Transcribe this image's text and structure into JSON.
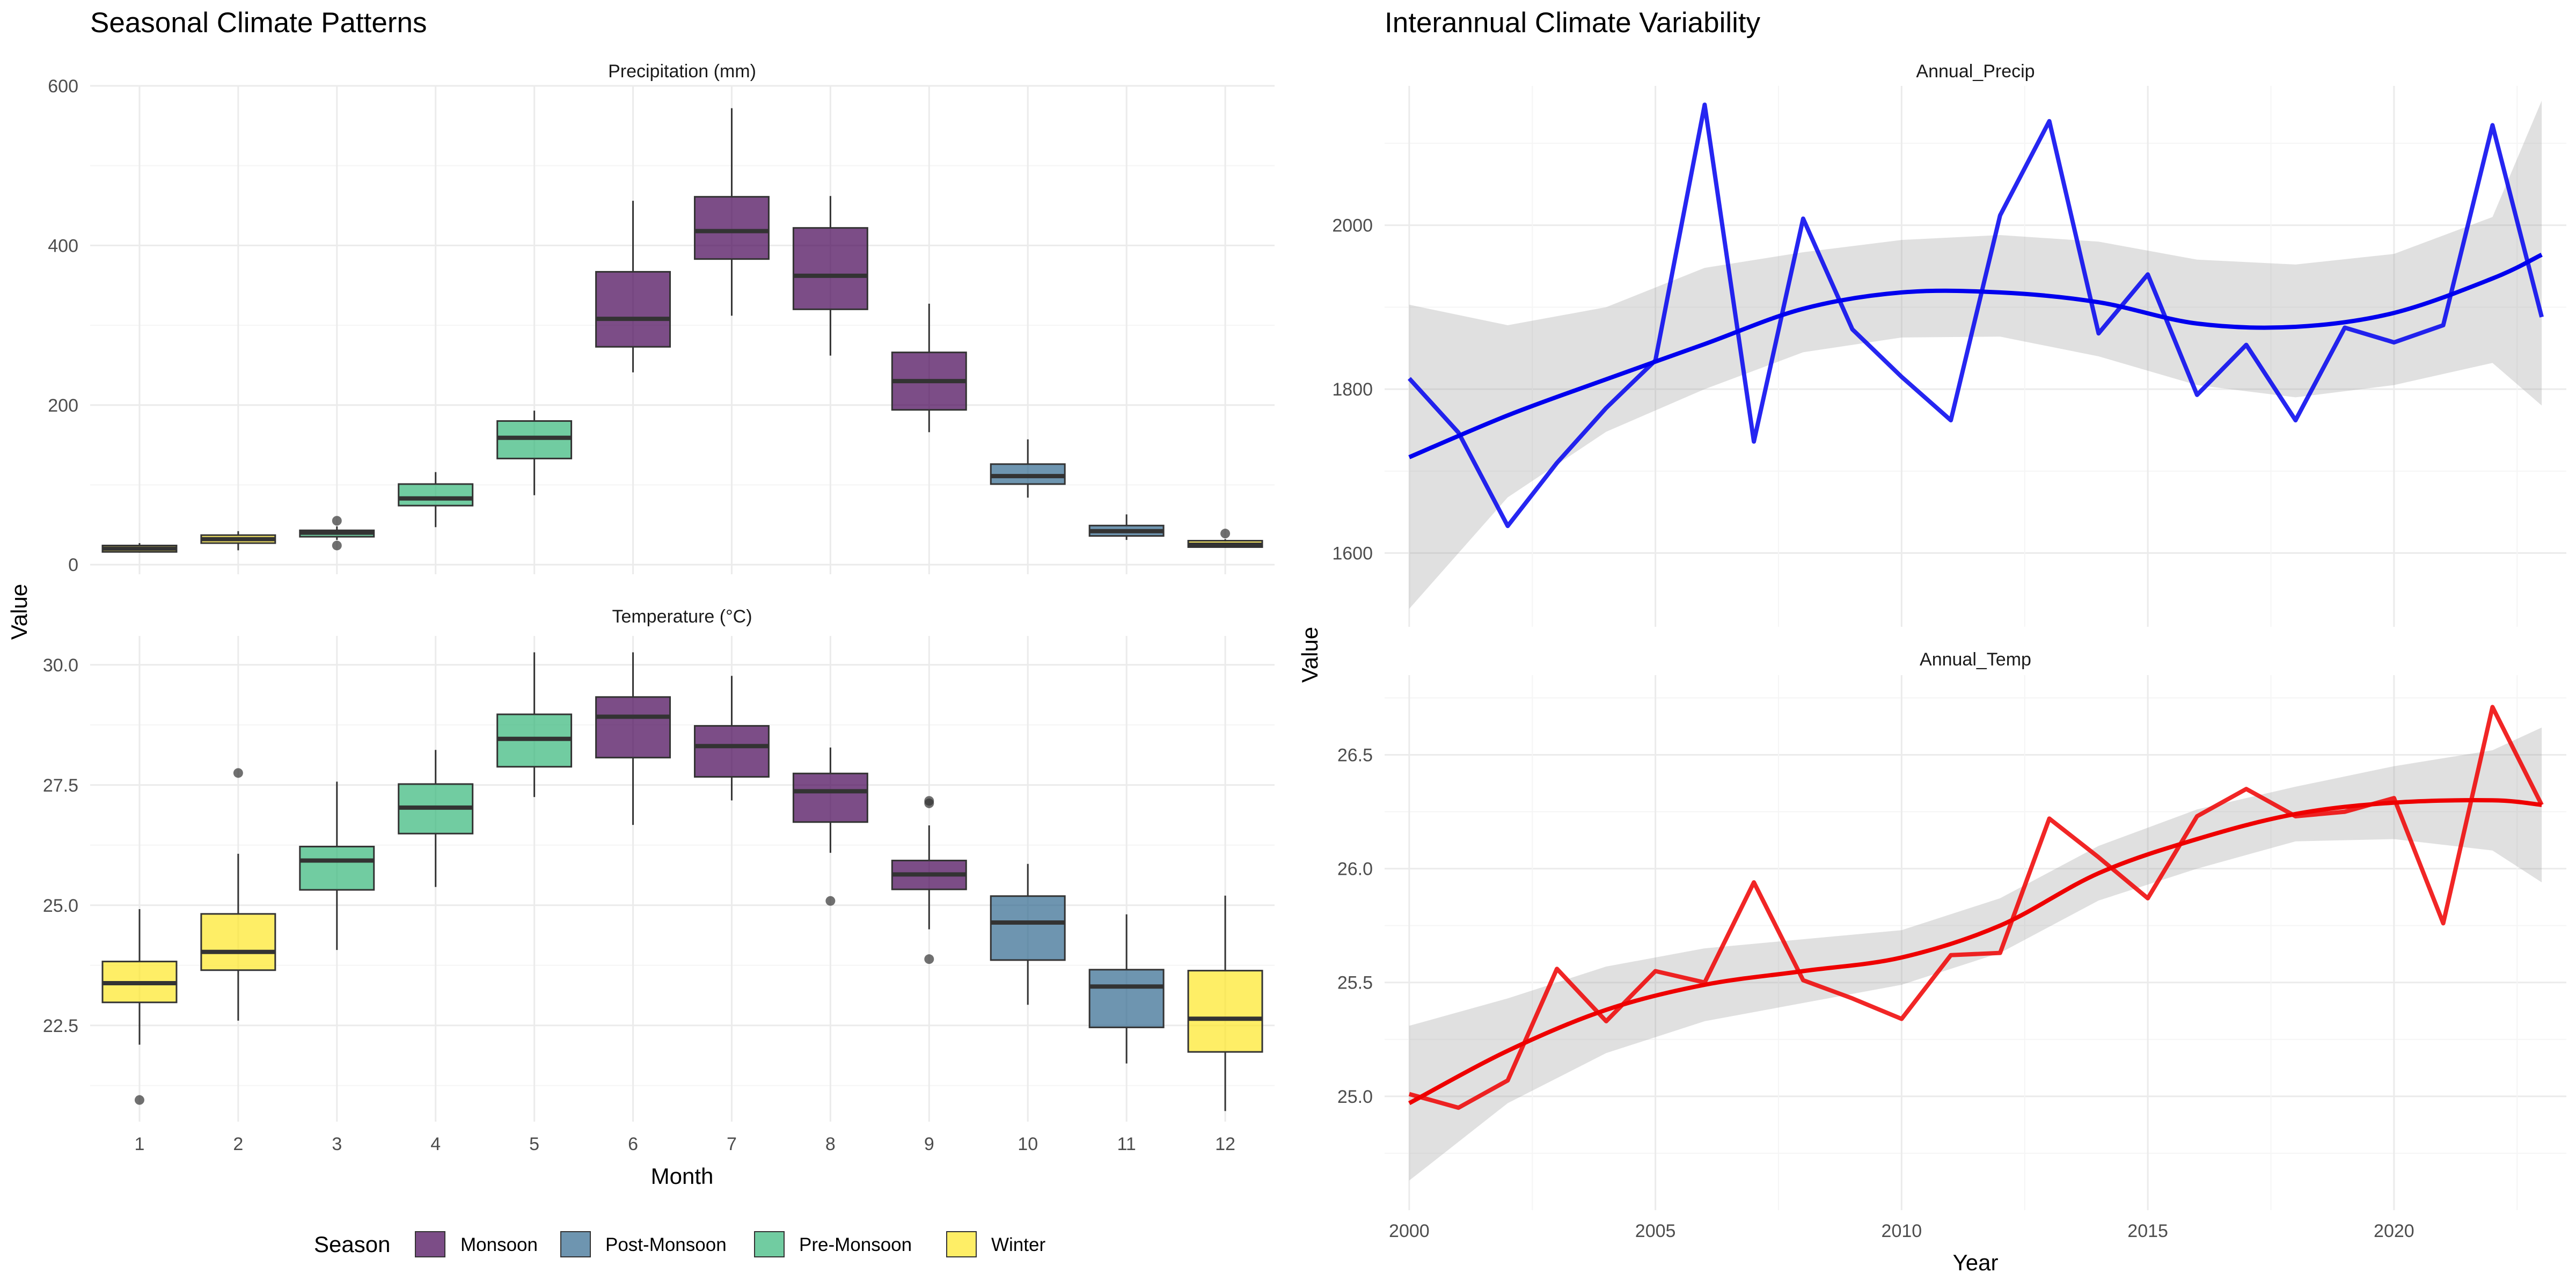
{
  "chart_data": [
    {
      "type": "box",
      "title": "Seasonal Climate Patterns",
      "xlabel": "Month",
      "ylabel": "Value",
      "categories": [
        "1",
        "2",
        "3",
        "4",
        "5",
        "6",
        "7",
        "8",
        "9",
        "10",
        "11",
        "12"
      ],
      "season_by_month": [
        "Winter",
        "Winter",
        "Pre-Monsoon",
        "Pre-Monsoon",
        "Pre-Monsoon",
        "Monsoon",
        "Monsoon",
        "Monsoon",
        "Monsoon",
        "Post-Monsoon",
        "Post-Monsoon",
        "Winter"
      ],
      "legend": {
        "title": "Season",
        "position": "bottom",
        "entries": [
          {
            "label": "Monsoon",
            "color": "#440154"
          },
          {
            "label": "Post-Monsoon",
            "color": "#31688e"
          },
          {
            "label": "Pre-Monsoon",
            "color": "#35b779"
          },
          {
            "label": "Winter",
            "color": "#fde725"
          }
        ]
      },
      "panels": [
        {
          "strip": "Precipitation (mm)",
          "ylim": [
            -12,
            600
          ],
          "yticks": [
            0,
            200,
            400,
            600
          ],
          "ytick_labels": [
            "0",
            "200",
            "400",
            "600"
          ],
          "boxes": [
            {
              "min": 15,
              "q1": 16,
              "median": 20,
              "q3": 24,
              "max": 27,
              "outliers": []
            },
            {
              "min": 18,
              "q1": 27,
              "median": 32,
              "q3": 37,
              "max": 42,
              "outliers": []
            },
            {
              "min": 31,
              "q1": 35,
              "median": 40,
              "q3": 43,
              "max": 48,
              "outliers": [
                55,
                24
              ]
            },
            {
              "min": 47,
              "q1": 74,
              "median": 83,
              "q3": 101,
              "max": 116,
              "outliers": []
            },
            {
              "min": 87,
              "q1": 133,
              "median": 159,
              "q3": 180,
              "max": 193,
              "outliers": []
            },
            {
              "min": 241,
              "q1": 273,
              "median": 308,
              "q3": 367,
              "max": 456,
              "outliers": []
            },
            {
              "min": 312,
              "q1": 383,
              "median": 418,
              "q3": 461,
              "max": 572,
              "outliers": []
            },
            {
              "min": 262,
              "q1": 320,
              "median": 362,
              "q3": 422,
              "max": 462,
              "outliers": []
            },
            {
              "min": 166,
              "q1": 194,
              "median": 230,
              "q3": 266,
              "max": 327,
              "outliers": []
            },
            {
              "min": 84,
              "q1": 101,
              "median": 111,
              "q3": 126,
              "max": 157,
              "outliers": []
            },
            {
              "min": 31,
              "q1": 36,
              "median": 42,
              "q3": 49,
              "max": 63,
              "outliers": []
            },
            {
              "min": 21,
              "q1": 22,
              "median": 25,
              "q3": 30,
              "max": 32,
              "outliers": [
                39
              ]
            }
          ]
        },
        {
          "strip": "Temperature (°C)",
          "ylim": [
            20.5,
            30.6
          ],
          "yticks": [
            22.5,
            25.0,
            27.5,
            30.0
          ],
          "ytick_labels": [
            "22.5",
            "25.0",
            "27.5",
            "30.0"
          ],
          "boxes": [
            {
              "min": 22.1,
              "q1": 22.98,
              "median": 23.38,
              "q3": 23.83,
              "max": 24.92,
              "outliers": [
                20.95
              ]
            },
            {
              "min": 22.6,
              "q1": 23.65,
              "median": 24.03,
              "q3": 24.82,
              "max": 26.07,
              "outliers": [
                27.75
              ]
            },
            {
              "min": 24.07,
              "q1": 25.32,
              "median": 25.93,
              "q3": 26.22,
              "max": 27.57,
              "outliers": []
            },
            {
              "min": 25.38,
              "q1": 26.49,
              "median": 27.03,
              "q3": 27.52,
              "max": 28.23,
              "outliers": []
            },
            {
              "min": 27.25,
              "q1": 27.88,
              "median": 28.46,
              "q3": 28.97,
              "max": 30.26,
              "outliers": []
            },
            {
              "min": 26.67,
              "q1": 28.07,
              "median": 28.92,
              "q3": 29.33,
              "max": 30.26,
              "outliers": []
            },
            {
              "min": 27.18,
              "q1": 27.67,
              "median": 28.31,
              "q3": 28.73,
              "max": 29.77,
              "outliers": []
            },
            {
              "min": 26.09,
              "q1": 26.73,
              "median": 27.37,
              "q3": 27.74,
              "max": 28.28,
              "outliers": [
                25.09
              ]
            },
            {
              "min": 24.5,
              "q1": 25.33,
              "median": 25.64,
              "q3": 25.93,
              "max": 26.66,
              "outliers": [
                27.17,
                27.12,
                23.88
              ]
            },
            {
              "min": 22.93,
              "q1": 23.86,
              "median": 24.64,
              "q3": 25.19,
              "max": 25.86,
              "outliers": []
            },
            {
              "min": 21.71,
              "q1": 22.46,
              "median": 23.31,
              "q3": 23.66,
              "max": 24.81,
              "outliers": []
            },
            {
              "min": 20.72,
              "q1": 21.95,
              "median": 22.64,
              "q3": 23.64,
              "max": 25.2,
              "outliers": []
            }
          ]
        }
      ]
    },
    {
      "type": "line",
      "title": "Interannual Climate Variability",
      "xlabel": "Year",
      "ylabel": "Value",
      "xlim": [
        1999.5,
        2023.5
      ],
      "xticks": [
        2000,
        2005,
        2010,
        2015,
        2020
      ],
      "xtick_labels": [
        "2000",
        "2005",
        "2010",
        "2015",
        "2020"
      ],
      "panels": [
        {
          "strip": "Annual_Precip",
          "ylim": [
            1510,
            2170
          ],
          "yticks": [
            1600,
            1800,
            2000
          ],
          "ytick_labels": [
            "1600",
            "1800",
            "2000"
          ],
          "line_color": "#0000ee",
          "x": [
            2000,
            2001,
            2002,
            2003,
            2004,
            2005,
            2006,
            2007,
            2008,
            2009,
            2010,
            2011,
            2012,
            2013,
            2014,
            2015,
            2016,
            2017,
            2018,
            2019,
            2020,
            2021,
            2022,
            2023
          ],
          "y": [
            1813,
            1747,
            1633,
            1710,
            1777,
            1835,
            2147,
            1736,
            2008,
            1873,
            1815,
            1762,
            2012,
            2127,
            1868,
            1940,
            1793,
            1854,
            1762,
            1875,
            1857,
            1878,
            2122,
            1888
          ],
          "smooth": {
            "x": [
              2000,
              2002,
              2004,
              2006,
              2008,
              2010,
              2012,
              2014,
              2016,
              2018,
              2020,
              2022,
              2023
            ],
            "y": [
              1717,
              1768,
              1812,
              1855,
              1898,
              1918,
              1918,
              1906,
              1880,
              1876,
              1893,
              1935,
              1964
            ],
            "lower": [
              1532,
              1668,
              1748,
              1800,
              1845,
              1863,
              1864,
              1840,
              1805,
              1790,
              1805,
              1832,
              1780
            ],
            "upper": [
              1903,
              1878,
              1900,
              1948,
              1967,
              1982,
              1988,
              1980,
              1958,
              1952,
              1965,
              2010,
              2152
            ]
          }
        },
        {
          "strip": "Annual_Temp",
          "ylim": [
            24.5,
            26.85
          ],
          "yticks": [
            25.0,
            25.5,
            26.0,
            26.5
          ],
          "ytick_labels": [
            "25.0",
            "25.5",
            "26.0",
            "26.5"
          ],
          "line_color": "#ee0000",
          "x": [
            2000,
            2001,
            2002,
            2003,
            2004,
            2005,
            2006,
            2007,
            2008,
            2009,
            2010,
            2011,
            2012,
            2013,
            2014,
            2015,
            2016,
            2017,
            2018,
            2019,
            2020,
            2021,
            2022,
            2023
          ],
          "y": [
            25.01,
            24.95,
            25.07,
            25.56,
            25.33,
            25.55,
            25.5,
            25.94,
            25.51,
            25.43,
            25.34,
            25.62,
            25.63,
            26.22,
            26.05,
            25.87,
            26.23,
            26.35,
            26.23,
            26.25,
            26.31,
            25.76,
            26.71,
            26.28
          ],
          "smooth": {
            "x": [
              2000,
              2002,
              2004,
              2006,
              2008,
              2010,
              2012,
              2014,
              2016,
              2018,
              2020,
              2022,
              2023
            ],
            "y": [
              24.97,
              25.2,
              25.38,
              25.49,
              25.55,
              25.61,
              25.75,
              25.98,
              26.13,
              26.24,
              26.29,
              26.3,
              26.28
            ],
            "lower": [
              24.63,
              24.97,
              25.19,
              25.33,
              25.41,
              25.49,
              25.63,
              25.86,
              26.0,
              26.12,
              26.13,
              26.08,
              25.94
            ],
            "upper": [
              25.31,
              25.43,
              25.57,
              25.65,
              25.69,
              25.73,
              25.87,
              26.1,
              26.26,
              26.36,
              26.45,
              26.52,
              26.62
            ]
          }
        }
      ]
    }
  ]
}
